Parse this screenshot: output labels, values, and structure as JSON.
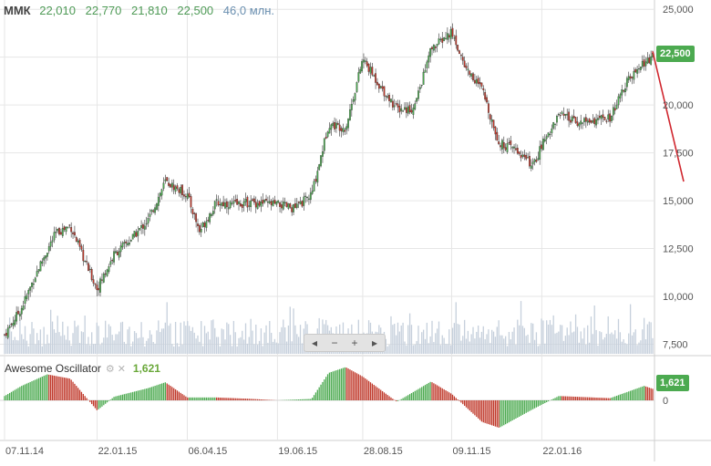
{
  "header": {
    "symbol": "ММК",
    "open": "22,010",
    "high": "22,770",
    "low": "21,810",
    "close": "22,500",
    "volume": "46,0 млн."
  },
  "oscillator": {
    "name": "Awesome Oscillator",
    "value": "1,621",
    "gear_icon": "gear-icon",
    "close_icon": "close-icon",
    "zero_label": "0"
  },
  "zoom_controls": {
    "left": "◂",
    "minus": "−",
    "plus": "+",
    "right": "▸"
  },
  "last_price_tag": "22,500",
  "colors": {
    "up": "#4caa50",
    "down": "#c0392b",
    "volume": "#c6d0dc",
    "trendline": "#d0262e",
    "grid": "#e6e6e6"
  },
  "chart_data": {
    "type": "candlestick",
    "x_tick_labels": [
      "07.11.14",
      "22.01.15",
      "06.04.15",
      "19.06.15",
      "28.08.15",
      "09.11.15",
      "22.01.16"
    ],
    "y_tick_labels": [
      "7,500",
      "10,000",
      "12,500",
      "15,000",
      "17,500",
      "20,000",
      "22,500",
      "25,000"
    ],
    "y_ticks": [
      7.5,
      10,
      12.5,
      15,
      17.5,
      20,
      22.5,
      25
    ],
    "ylim": [
      7.0,
      25.2
    ],
    "last_close": 22.5,
    "grid": true,
    "price_path": [
      [
        "07.11.14",
        8.0
      ],
      [
        "21.11.14",
        9.4
      ],
      [
        "05.12.14",
        11.5
      ],
      [
        "19.12.14",
        13.3
      ],
      [
        "31.12.14",
        13.7
      ],
      [
        "12.01.15",
        11.8
      ],
      [
        "22.01.15",
        10.4
      ],
      [
        "05.02.15",
        12.2
      ],
      [
        "19.02.15",
        13.0
      ],
      [
        "05.03.15",
        14.0
      ],
      [
        "19.03.15",
        16.0
      ],
      [
        "06.04.15",
        15.3
      ],
      [
        "16.04.15",
        13.4
      ],
      [
        "30.04.15",
        14.9
      ],
      [
        "15.05.15",
        14.8
      ],
      [
        "29.05.15",
        14.9
      ],
      [
        "19.06.15",
        14.8
      ],
      [
        "03.07.15",
        14.6
      ],
      [
        "17.07.15",
        15.3
      ],
      [
        "31.07.15",
        19.0
      ],
      [
        "14.08.15",
        18.8
      ],
      [
        "21.08.15",
        20.6
      ],
      [
        "28.08.15",
        22.4
      ],
      [
        "11.09.15",
        21.0
      ],
      [
        "25.09.15",
        19.8
      ],
      [
        "09.10.15",
        19.8
      ],
      [
        "23.10.15",
        22.9
      ],
      [
        "09.11.15",
        23.8
      ],
      [
        "20.11.15",
        22.0
      ],
      [
        "04.12.15",
        20.8
      ],
      [
        "18.12.15",
        18.0
      ],
      [
        "31.12.15",
        17.7
      ],
      [
        "15.01.16",
        16.8
      ],
      [
        "22.01.16",
        17.9
      ],
      [
        "05.02.16",
        19.5
      ],
      [
        "19.02.16",
        19.1
      ],
      [
        "04.03.16",
        19.2
      ],
      [
        "18.03.16",
        19.3
      ],
      [
        "01.04.16",
        21.2
      ],
      [
        "15.04.16",
        22.2
      ],
      [
        "22.04.16",
        22.5
      ]
    ],
    "trendline": {
      "from": [
        "22.04.16",
        22.8
      ],
      "to": [
        "projection",
        16.0
      ]
    },
    "volume": {
      "unit": "млн.",
      "last": 46.0
    },
    "awesome_oscillator": {
      "last": 1.621,
      "path": [
        [
          "07.11.14",
          0.6
        ],
        [
          "21.11.14",
          2.0
        ],
        [
          "12.12.14",
          3.6
        ],
        [
          "31.12.14",
          3.0
        ],
        [
          "22.01.15",
          -1.4
        ],
        [
          "05.02.15",
          0.5
        ],
        [
          "05.03.15",
          1.7
        ],
        [
          "19.03.15",
          2.5
        ],
        [
          "06.04.15",
          0.4
        ],
        [
          "30.04.15",
          0.4
        ],
        [
          "29.05.15",
          0.2
        ],
        [
          "19.06.15",
          0.0
        ],
        [
          "17.07.15",
          0.2
        ],
        [
          "31.07.15",
          3.8
        ],
        [
          "14.08.15",
          4.6
        ],
        [
          "28.08.15",
          3.3
        ],
        [
          "25.09.15",
          -0.2
        ],
        [
          "09.10.15",
          1.2
        ],
        [
          "23.10.15",
          2.6
        ],
        [
          "09.11.15",
          0.9
        ],
        [
          "04.12.15",
          -3.0
        ],
        [
          "18.12.15",
          -3.8
        ],
        [
          "15.01.16",
          -1.2
        ],
        [
          "05.02.16",
          0.6
        ],
        [
          "18.03.16",
          0.3
        ],
        [
          "15.04.16",
          2.0
        ],
        [
          "22.04.16",
          1.6
        ]
      ]
    }
  }
}
